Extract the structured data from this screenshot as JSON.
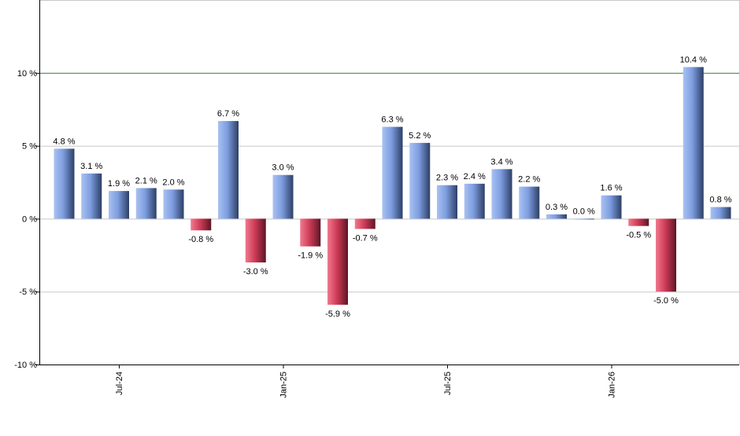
{
  "chart_data": {
    "type": "bar",
    "title": "",
    "xlabel": "",
    "ylabel": "",
    "ylim": [
      -10,
      15
    ],
    "y_ticks": [
      {
        "value": -10,
        "label": "-10 %"
      },
      {
        "value": -5,
        "label": "-5 %"
      },
      {
        "value": 0,
        "label": "0 %"
      },
      {
        "value": 5,
        "label": "5 %"
      },
      {
        "value": 10,
        "label": "10 %"
      }
    ],
    "x_ticks": [
      {
        "index": 2,
        "label": "Jul-24"
      },
      {
        "index": 8,
        "label": "Jan-25"
      },
      {
        "index": 14,
        "label": "Jul-25"
      },
      {
        "index": 20,
        "label": "Jan-26"
      }
    ],
    "reference_line": {
      "value": 10,
      "color": "#2e7d32"
    },
    "grid": true,
    "legend": "none",
    "colors": {
      "positive": "#7ea0e3",
      "negative": "#d64560"
    },
    "values": [
      4.8,
      3.1,
      1.9,
      2.1,
      2.0,
      -0.8,
      6.7,
      -3.0,
      3.0,
      -1.9,
      -5.9,
      -0.7,
      6.3,
      5.2,
      2.3,
      2.4,
      3.4,
      2.2,
      0.3,
      0.0,
      1.6,
      -0.5,
      -5.0,
      10.4,
      0.8
    ],
    "labels": [
      "4.8 %",
      "3.1 %",
      "1.9 %",
      "2.1 %",
      "2.0 %",
      "-0.8 %",
      "6.7 %",
      "-3.0 %",
      "3.0 %",
      "-1.9 %",
      "-5.9 %",
      "-0.7 %",
      "6.3 %",
      "5.2 %",
      "2.3 %",
      "2.4 %",
      "3.4 %",
      "2.2 %",
      "0.3 %",
      "0.0 %",
      "1.6 %",
      "-0.5 %",
      "-5.0 %",
      "10.4 %",
      "0.8 %"
    ]
  }
}
